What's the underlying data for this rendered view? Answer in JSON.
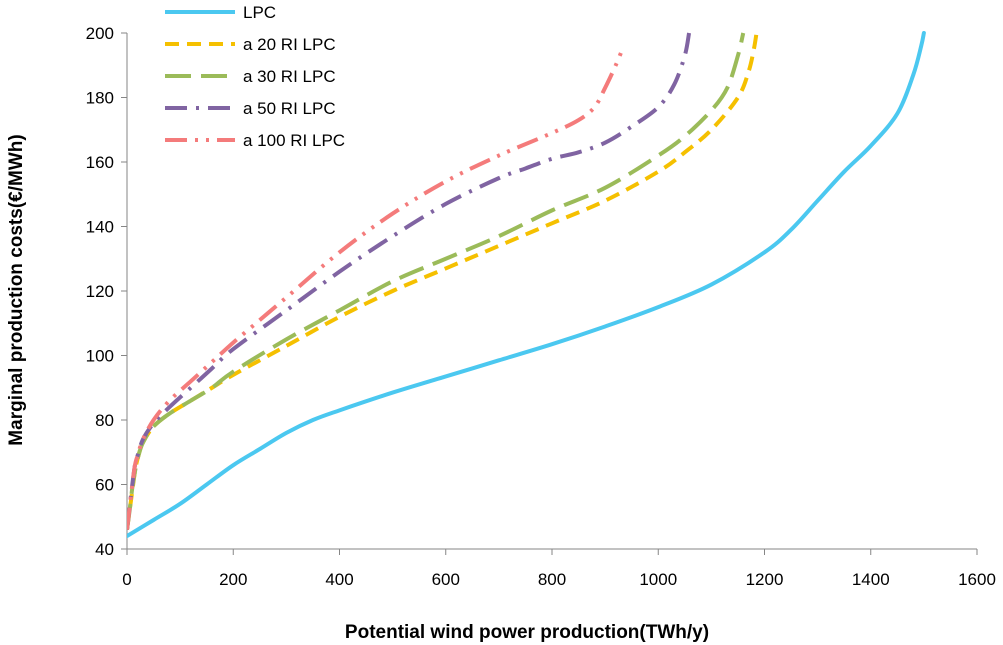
{
  "chart_data": {
    "type": "line",
    "title": "",
    "xlabel": "Potential wind power production(TWh/y)",
    "ylabel": "Marginal production costs(€/MWh)",
    "xlim": [
      0,
      1600
    ],
    "ylim": [
      40,
      200
    ],
    "x_ticks": [
      0,
      200,
      400,
      600,
      800,
      1000,
      1200,
      1400,
      1600
    ],
    "y_ticks": [
      40,
      60,
      80,
      100,
      120,
      140,
      160,
      180,
      200
    ],
    "grid": false,
    "legend_position": "top-left",
    "series": [
      {
        "name": "LPC",
        "color": "#4BC8F0",
        "dash": "solid",
        "x": [
          0,
          50,
          100,
          150,
          200,
          250,
          300,
          350,
          400,
          500,
          600,
          700,
          800,
          900,
          1000,
          1100,
          1200,
          1250,
          1300,
          1350,
          1400,
          1450,
          1480,
          1495,
          1500
        ],
        "y": [
          44,
          49,
          54,
          60,
          66,
          71,
          76,
          80,
          83,
          88.5,
          93.5,
          98.5,
          103.5,
          109,
          115,
          122,
          132,
          139,
          148,
          157,
          165,
          175,
          187,
          196,
          200
        ]
      },
      {
        "name": "a 20 RI  LPC",
        "color": "#F5C000",
        "dash": "dash",
        "x": [
          0,
          5,
          10,
          15,
          20,
          30,
          50,
          80,
          120,
          160,
          200,
          300,
          400,
          500,
          600,
          700,
          800,
          900,
          1000,
          1050,
          1100,
          1150,
          1170,
          1180,
          1185
        ],
        "y": [
          46,
          52,
          58,
          64,
          68,
          73,
          78,
          82,
          86,
          90,
          94,
          103,
          112,
          120,
          127,
          134,
          141,
          148,
          157,
          163,
          170,
          180,
          188,
          195,
          200
        ]
      },
      {
        "name": "a 30 RI LPC",
        "color": "#9BBB59",
        "dash": "longdash",
        "x": [
          0,
          5,
          10,
          15,
          20,
          30,
          50,
          80,
          120,
          160,
          200,
          300,
          400,
          500,
          600,
          700,
          800,
          900,
          1000,
          1050,
          1100,
          1130,
          1150,
          1160
        ],
        "y": [
          46,
          52,
          59,
          64,
          68,
          73,
          78,
          82,
          86,
          90,
          95,
          105,
          114,
          123,
          130,
          137,
          145,
          152,
          162,
          168,
          176,
          183,
          193,
          200
        ]
      },
      {
        "name": "a 50 RI LPC",
        "color": "#8064A2",
        "dash": "dashdot",
        "x": [
          0,
          5,
          10,
          15,
          20,
          30,
          50,
          80,
          120,
          160,
          200,
          300,
          400,
          500,
          600,
          700,
          750,
          800,
          850,
          900,
          950,
          1000,
          1030,
          1050,
          1058
        ],
        "y": [
          46,
          53,
          60,
          66,
          69,
          74,
          79,
          84,
          90,
          96,
          102,
          114,
          126,
          137,
          147,
          155,
          158,
          161,
          163,
          166,
          171,
          177,
          184,
          193,
          200
        ]
      },
      {
        "name": "a 100 RI LPC",
        "color": "#F47B7B",
        "dash": "dashdotdot",
        "x": [
          0,
          5,
          10,
          15,
          20,
          30,
          50,
          80,
          120,
          160,
          200,
          250,
          300,
          400,
          500,
          600,
          700,
          800,
          850,
          880,
          900,
          920,
          935
        ],
        "y": [
          46,
          53,
          60,
          66,
          69,
          74,
          80,
          86,
          92,
          98,
          104,
          111,
          118,
          132,
          144,
          154,
          162,
          169,
          173,
          177,
          183,
          190,
          196
        ]
      }
    ]
  }
}
